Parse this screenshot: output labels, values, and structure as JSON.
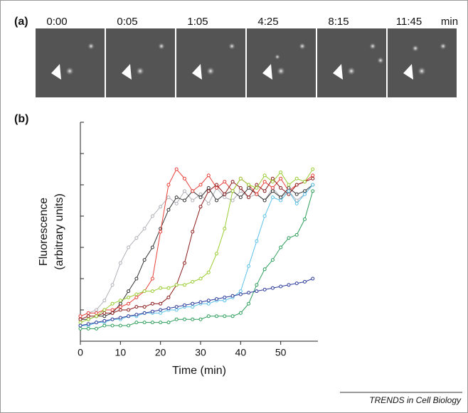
{
  "panel_a": {
    "label": "(a)",
    "times": [
      "0:00",
      "0:05",
      "1:05",
      "4:25",
      "8:15",
      "11:45"
    ],
    "unit": "min"
  },
  "chart_data": {
    "type": "line",
    "panel_label": "(b)",
    "x_label": "Time (min)",
    "y_label": [
      "Fluorescence",
      "(arbitrary units)"
    ],
    "x": [
      0,
      2,
      4,
      6,
      8,
      10,
      12,
      14,
      16,
      18,
      20,
      22,
      24,
      26,
      28,
      30,
      32,
      34,
      36,
      38,
      40,
      42,
      44,
      46,
      48,
      50,
      52,
      54,
      56,
      58
    ],
    "xlim": [
      0,
      60
    ],
    "xticks": [
      0,
      10,
      20,
      30,
      40,
      50
    ],
    "ylim": [
      0,
      7
    ],
    "yticks": [
      1,
      2,
      3,
      4,
      5,
      6,
      7
    ],
    "series": [
      {
        "color": "#b0b0b8",
        "values": [
          0.8,
          0.9,
          1.0,
          1.3,
          1.8,
          2.5,
          3.0,
          3.3,
          3.6,
          4.0,
          4.3,
          4.6,
          4.4,
          4.8,
          4.5,
          4.7,
          4.4,
          4.9,
          4.6,
          4.5,
          4.8,
          4.6,
          4.7,
          4.5,
          4.9,
          4.6,
          4.8,
          4.5,
          4.7,
          5.0
        ]
      },
      {
        "color": "#333333",
        "values": [
          0.7,
          0.7,
          0.8,
          0.8,
          0.9,
          1.2,
          1.6,
          2.0,
          2.6,
          3.0,
          3.6,
          4.2,
          4.6,
          4.5,
          4.8,
          4.6,
          4.9,
          4.5,
          4.7,
          4.8,
          4.6,
          4.9,
          4.7,
          4.5,
          4.8,
          4.6,
          4.9,
          4.7,
          4.8,
          5.0
        ]
      },
      {
        "color": "#e8403a",
        "values": [
          0.8,
          0.9,
          0.9,
          1.0,
          1.0,
          1.1,
          1.2,
          1.4,
          1.6,
          2.0,
          3.5,
          5.0,
          5.5,
          5.2,
          4.8,
          5.0,
          5.3,
          4.9,
          5.1,
          4.8,
          5.2,
          5.0,
          4.7,
          5.1,
          4.9,
          5.2,
          4.8,
          5.0,
          5.1,
          5.3
        ]
      },
      {
        "color": "#8b1a1a",
        "values": [
          0.7,
          0.8,
          0.8,
          0.9,
          0.9,
          1.0,
          1.0,
          1.1,
          1.1,
          1.2,
          1.2,
          1.4,
          1.8,
          2.5,
          3.5,
          4.3,
          4.8,
          5.0,
          4.7,
          5.1,
          4.9,
          4.6,
          5.0,
          4.8,
          5.2,
          4.9,
          4.7,
          5.0,
          5.1,
          5.2
        ]
      },
      {
        "color": "#9acd32",
        "values": [
          0.6,
          0.7,
          0.8,
          1.0,
          1.2,
          1.3,
          1.4,
          1.5,
          1.6,
          1.6,
          1.7,
          1.7,
          1.8,
          1.8,
          1.9,
          2.0,
          2.2,
          2.8,
          3.6,
          4.8,
          5.2,
          5.0,
          4.9,
          5.3,
          5.1,
          5.4,
          5.0,
          5.2,
          5.1,
          5.5
        ]
      },
      {
        "color": "#5bc0e8",
        "values": [
          0.5,
          0.5,
          0.6,
          0.6,
          0.7,
          0.7,
          0.8,
          0.8,
          0.9,
          0.9,
          0.9,
          1.0,
          1.0,
          1.1,
          1.1,
          1.2,
          1.2,
          1.3,
          1.3,
          1.4,
          1.6,
          2.4,
          3.2,
          4.0,
          4.6,
          4.5,
          4.8,
          4.4,
          4.7,
          5.0
        ]
      },
      {
        "color": "#2e9e5b",
        "values": [
          0.4,
          0.4,
          0.4,
          0.5,
          0.5,
          0.5,
          0.5,
          0.6,
          0.6,
          0.6,
          0.6,
          0.6,
          0.7,
          0.7,
          0.7,
          0.7,
          0.8,
          0.8,
          0.8,
          0.8,
          0.9,
          1.2,
          1.8,
          2.3,
          2.6,
          3.0,
          3.3,
          3.4,
          3.9,
          4.8
        ]
      },
      {
        "color": "#2b3a9a",
        "values": [
          0.5,
          0.55,
          0.6,
          0.65,
          0.7,
          0.75,
          0.8,
          0.85,
          0.9,
          0.95,
          1.0,
          1.05,
          1.1,
          1.15,
          1.2,
          1.25,
          1.3,
          1.35,
          1.4,
          1.45,
          1.5,
          1.55,
          1.6,
          1.65,
          1.7,
          1.75,
          1.8,
          1.85,
          1.9,
          2.0
        ]
      }
    ]
  },
  "footer": "TRENDS in Cell Biology"
}
